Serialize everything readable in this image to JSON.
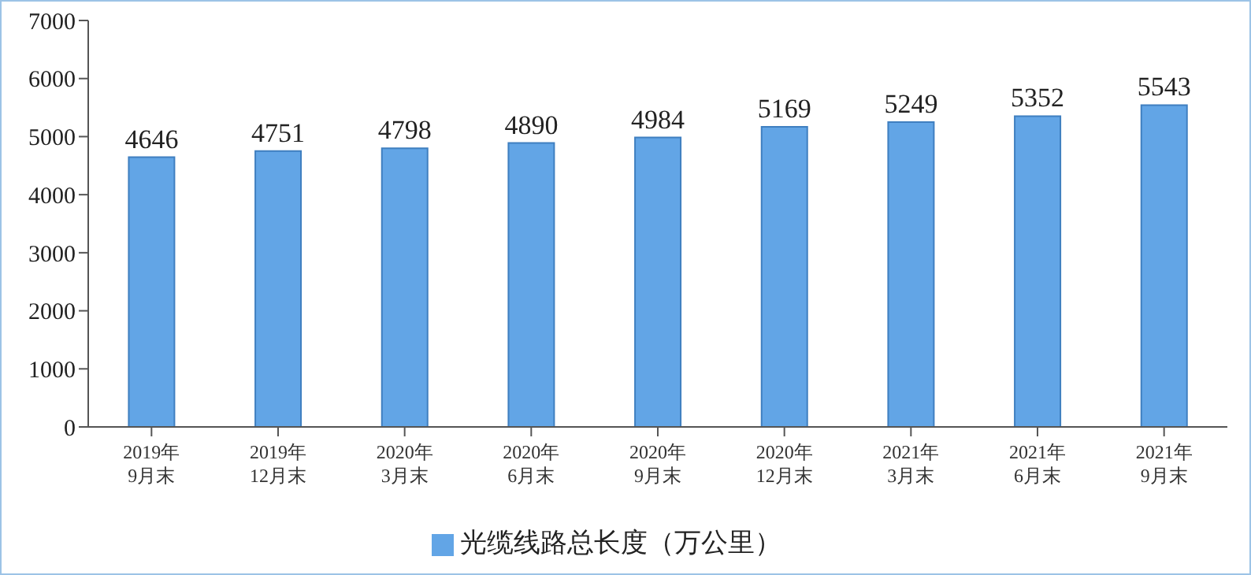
{
  "chart_data": {
    "type": "bar",
    "categories": [
      "2019年\n9月末",
      "2019年\n12月末",
      "2020年\n3月末",
      "2020年\n6月末",
      "2020年\n9月末",
      "2020年\n12月末",
      "2021年\n3月末",
      "2021年\n6月末",
      "2021年\n9月末"
    ],
    "series": [
      {
        "name": "光缆线路总长度（万公里）",
        "color": "#62a5e6",
        "values": [
          4646,
          4751,
          4798,
          4890,
          4984,
          5169,
          5249,
          5352,
          5543
        ]
      }
    ],
    "ylim": [
      0,
      7000
    ],
    "yticks": [
      0,
      1000,
      2000,
      3000,
      4000,
      5000,
      6000,
      7000
    ],
    "data_labels": true,
    "grid": false,
    "legend": "bottom"
  }
}
